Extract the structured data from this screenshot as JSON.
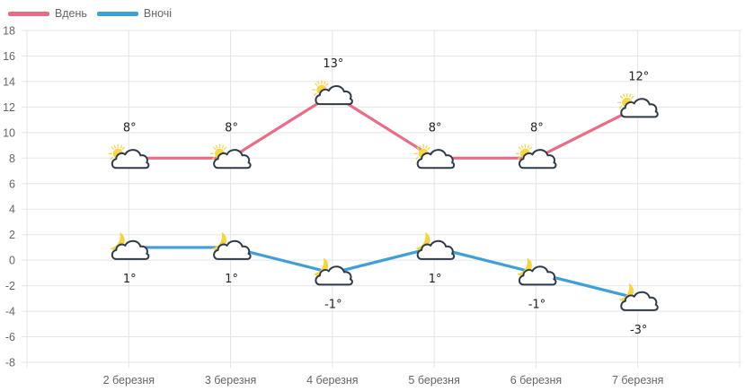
{
  "legend": [
    {
      "label": "Вдень",
      "color": "#EB6C87"
    },
    {
      "label": "Вночі",
      "color": "#3E9FDA"
    }
  ],
  "colors": {
    "grid": "#E5E5E5",
    "axis_text": "#666666",
    "value_text": "#222222",
    "cloud_stroke": "#2F3B4A",
    "sun": "#F7D64A",
    "moon": "#F5D443"
  },
  "chart_data": {
    "type": "line",
    "title": "",
    "xlabel": "",
    "ylabel": "",
    "categories": [
      "2 березня",
      "3 березня",
      "4 березня",
      "5 березня",
      "6 березня",
      "7 березня"
    ],
    "series": [
      {
        "name": "Вдень",
        "values": [
          8,
          8,
          13,
          8,
          8,
          12
        ],
        "labels": [
          "8°",
          "8°",
          "13°",
          "8°",
          "8°",
          "12°"
        ],
        "icon": "sun-cloud-icon"
      },
      {
        "name": "Вночі",
        "values": [
          1,
          1,
          -1,
          1,
          -1,
          -3
        ],
        "labels": [
          "1°",
          "1°",
          "-1°",
          "1°",
          "-1°",
          "-3°"
        ],
        "icon": "moon-cloud-icon"
      }
    ],
    "ylim": [
      -8,
      18
    ],
    "yticks": [
      18,
      16,
      14,
      12,
      10,
      8,
      6,
      4,
      2,
      0,
      -2,
      -4,
      -6,
      -8
    ],
    "grid": true,
    "legend_position": "top-left"
  }
}
